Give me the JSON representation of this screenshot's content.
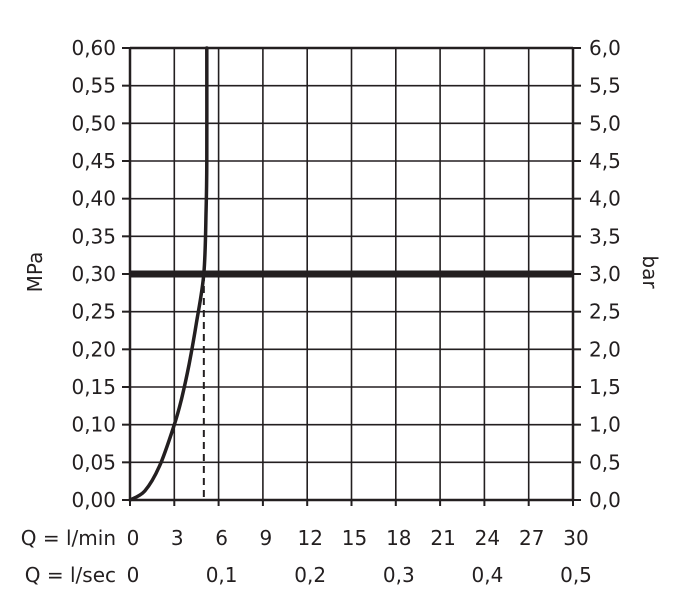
{
  "chart_data": {
    "type": "line",
    "title": "",
    "y_left": {
      "label": "MPa",
      "range": [
        0,
        0.6
      ],
      "ticks": [
        0,
        0.05,
        0.1,
        0.15,
        0.2,
        0.25,
        0.3,
        0.35,
        0.4,
        0.45,
        0.5,
        0.55,
        0.6
      ],
      "tick_labels": [
        "0,00",
        "0,05",
        "0,10",
        "0,15",
        "0,20",
        "0,25",
        "0,30",
        "0,35",
        "0,40",
        "0,45",
        "0,50",
        "0,55",
        "0,60"
      ]
    },
    "y_right": {
      "label": "bar",
      "range": [
        0,
        6
      ],
      "tick_labels": [
        "0,0",
        "0,5",
        "1,0",
        "1,5",
        "2,0",
        "2,5",
        "3,0",
        "3,5",
        "4,0",
        "4,5",
        "5,0",
        "5,5",
        "6,0"
      ]
    },
    "x_primary": {
      "label": "Q = l/min",
      "range": [
        0,
        30
      ],
      "ticks": [
        0,
        3,
        6,
        9,
        12,
        15,
        18,
        21,
        24,
        27,
        30
      ],
      "tick_labels": [
        "0",
        "3",
        "6",
        "9",
        "12",
        "15",
        "18",
        "21",
        "24",
        "27",
        "30"
      ]
    },
    "x_secondary": {
      "label": "Q = l/sec",
      "ticks": [
        0,
        0.1,
        0.2,
        0.3,
        0.4,
        0.5
      ],
      "tick_labels": [
        "0",
        "0,1",
        "0,2",
        "0,3",
        "0,4",
        "0,5"
      ]
    },
    "grid": true,
    "series": [
      {
        "values": [
          {
            "x": 0,
            "y": 0
          },
          {
            "x": 1,
            "y": 0.012
          },
          {
            "x": 2,
            "y": 0.045
          },
          {
            "x": 3,
            "y": 0.1
          },
          {
            "x": 3.5,
            "y": 0.135
          },
          {
            "x": 4,
            "y": 0.18
          },
          {
            "x": 4.5,
            "y": 0.235
          },
          {
            "x": 5,
            "y": 0.3
          },
          {
            "x": 5.15,
            "y": 0.38
          },
          {
            "x": 5.2,
            "y": 0.45
          },
          {
            "x": 5.2,
            "y": 0.6
          }
        ]
      }
    ],
    "reference_line_y": 0.3,
    "reference_drop_x": 5,
    "colors": {
      "line": "#231f20",
      "grid": "#231f20",
      "background": "#ffffff"
    }
  }
}
